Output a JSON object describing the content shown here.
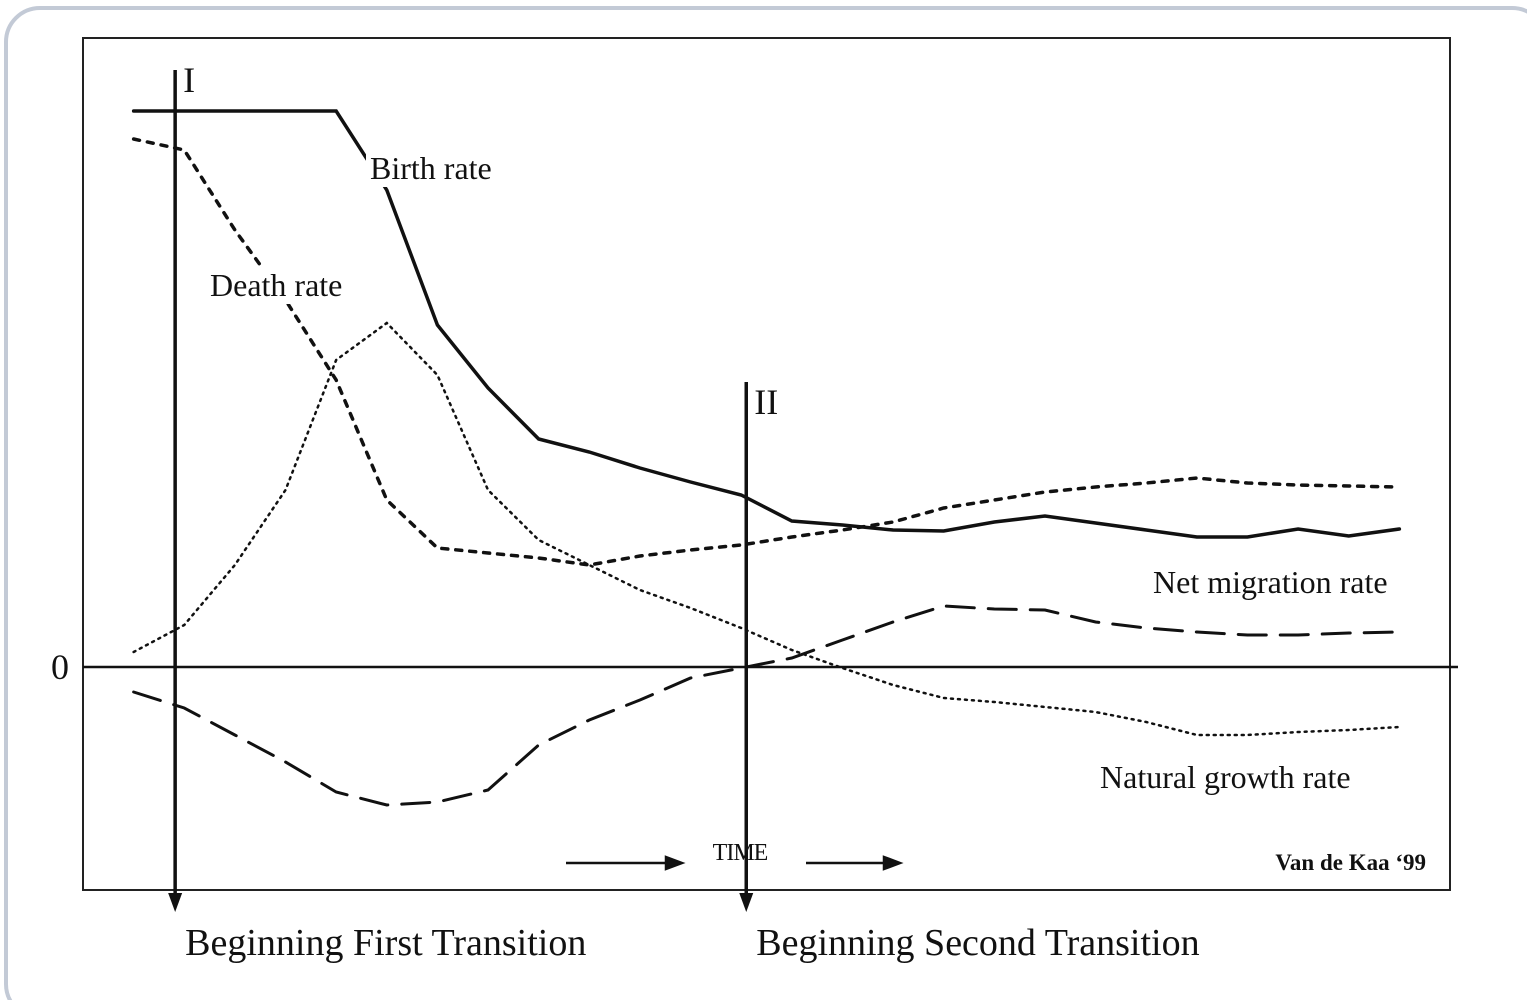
{
  "chart_data": {
    "type": "line",
    "x": [
      0,
      1,
      2,
      3,
      4,
      5,
      6,
      7,
      8,
      9,
      10,
      11,
      12,
      13,
      14,
      15,
      16,
      17,
      18,
      19,
      20,
      21,
      22,
      23,
      24,
      25
    ],
    "xlim": [
      -1,
      26
    ],
    "ylim": [
      -22.3,
      62.9
    ],
    "yticks": [
      0
    ],
    "series": [
      {
        "name": "Birth rate",
        "color": "#111111",
        "dash": "solid",
        "values": [
          55.6,
          55.6,
          55.6,
          55.6,
          55.6,
          47.7,
          34.2,
          27.9,
          22.8,
          21.5,
          19.9,
          18.5,
          17.2,
          14.6,
          14.2,
          13.7,
          13.6,
          14.5,
          15.1,
          14.4,
          13.7,
          13.0,
          13.0,
          13.8,
          13.1,
          13.8
        ]
      },
      {
        "name": "Death rate",
        "color": "#111111",
        "dash": "short-dash",
        "values": [
          52.8,
          51.7,
          43.7,
          36.7,
          28.7,
          16.7,
          11.9,
          11.4,
          10.9,
          10.2,
          11.1,
          11.7,
          12.2,
          13.0,
          13.7,
          14.5,
          15.9,
          16.7,
          17.5,
          18.0,
          18.4,
          18.9,
          18.4,
          18.2,
          18.1,
          18.0
        ]
      },
      {
        "name": "Net migration rate",
        "color": "#111111",
        "dash": "long-dash",
        "values": [
          -2.5,
          -4.1,
          -6.8,
          -9.5,
          -12.5,
          -13.8,
          -13.5,
          -12.3,
          -7.8,
          -5.3,
          -3.3,
          -1.1,
          -0.1,
          0.9,
          2.7,
          4.5,
          6.1,
          5.8,
          5.7,
          4.5,
          3.9,
          3.5,
          3.2,
          3.2,
          3.4,
          3.5
        ]
      },
      {
        "name": "Natural growth rate",
        "color": "#111111",
        "dash": "dotted",
        "values": [
          1.5,
          4.2,
          10.2,
          17.7,
          30.7,
          34.4,
          29.2,
          17.7,
          12.7,
          10.2,
          7.7,
          5.9,
          3.9,
          1.7,
          -0.1,
          -1.8,
          -3.1,
          -3.5,
          -4.0,
          -4.5,
          -5.5,
          -6.8,
          -6.8,
          -6.5,
          -6.3,
          -6.0
        ]
      }
    ],
    "annotations": [
      {
        "text": "I",
        "x": 0.82,
        "label": "Beginning First Transition"
      },
      {
        "text": "II",
        "x": 12.1,
        "label": "Beginning Second Transition"
      }
    ],
    "time_label": "TIME",
    "source": "Van de Kaa ‘99"
  }
}
